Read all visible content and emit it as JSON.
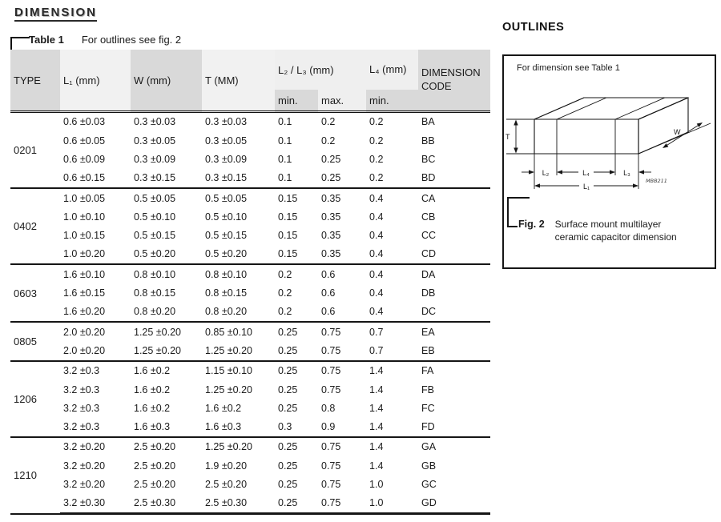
{
  "page": {
    "title": "DIMENSION"
  },
  "table": {
    "caption_label": "Table 1",
    "caption_note": "For outlines see fig. 2",
    "headers": {
      "type": "TYPE",
      "l1": "L₁ (mm)",
      "w": "W (mm)",
      "t": "T (MM)",
      "l2l3": "L₂ / L₃ (mm)",
      "l4": "L₄ (mm)",
      "code": "DIMENSION CODE",
      "min": "min.",
      "max": "max."
    },
    "groups": [
      {
        "type": "0201",
        "rows": [
          [
            "0.6 ±0.03",
            "0.3 ±0.03",
            "0.3 ±0.03",
            "0.1",
            "0.2",
            "0.2",
            "BA"
          ],
          [
            "0.6 ±0.05",
            "0.3 ±0.05",
            "0.3 ±0.05",
            "0.1",
            "0.2",
            "0.2",
            "BB"
          ],
          [
            "0.6 ±0.09",
            "0.3 ±0.09",
            "0.3 ±0.09",
            "0.1",
            "0.25",
            "0.2",
            "BC"
          ],
          [
            "0.6 ±0.15",
            "0.3 ±0.15",
            "0.3 ±0.15",
            "0.1",
            "0.25",
            "0.2",
            "BD"
          ]
        ]
      },
      {
        "type": "0402",
        "rows": [
          [
            "1.0 ±0.05",
            "0.5 ±0.05",
            "0.5 ±0.05",
            "0.15",
            "0.35",
            "0.4",
            "CA"
          ],
          [
            "1.0 ±0.10",
            "0.5 ±0.10",
            "0.5 ±0.10",
            "0.15",
            "0.35",
            "0.4",
            "CB"
          ],
          [
            "1.0 ±0.15",
            "0.5 ±0.15",
            "0.5 ±0.15",
            "0.15",
            "0.35",
            "0.4",
            "CC"
          ],
          [
            "1.0 ±0.20",
            "0.5 ±0.20",
            "0.5 ±0.20",
            "0.15",
            "0.35",
            "0.4",
            "CD"
          ]
        ]
      },
      {
        "type": "0603",
        "rows": [
          [
            "1.6 ±0.10",
            "0.8 ±0.10",
            "0.8 ±0.10",
            "0.2",
            "0.6",
            "0.4",
            "DA"
          ],
          [
            "1.6 ±0.15",
            "0.8 ±0.15",
            "0.8 ±0.15",
            "0.2",
            "0.6",
            "0.4",
            "DB"
          ],
          [
            "1.6 ±0.20",
            "0.8 ±0.20",
            "0.8 ±0.20",
            "0.2",
            "0.6",
            "0.4",
            "DC"
          ]
        ]
      },
      {
        "type": "0805",
        "rows": [
          [
            "2.0 ±0.20",
            "1.25 ±0.20",
            "0.85 ±0.10",
            "0.25",
            "0.75",
            "0.7",
            "EA"
          ],
          [
            "2.0 ±0.20",
            "1.25 ±0.20",
            "1.25 ±0.20",
            "0.25",
            "0.75",
            "0.7",
            "EB"
          ]
        ]
      },
      {
        "type": "1206",
        "rows": [
          [
            "3.2 ±0.3",
            "1.6 ±0.2",
            "1.15 ±0.10",
            "0.25",
            "0.75",
            "1.4",
            "FA"
          ],
          [
            "3.2 ±0.3",
            "1.6 ±0.2",
            "1.25 ±0.20",
            "0.25",
            "0.75",
            "1.4",
            "FB"
          ],
          [
            "3.2 ±0.3",
            "1.6 ±0.2",
            "1.6 ±0.2",
            "0.25",
            "0.8",
            "1.4",
            "FC"
          ],
          [
            "3.2 ±0.3",
            "1.6 ±0.3",
            "1.6 ±0.3",
            "0.3",
            "0.9",
            "1.4",
            "FD"
          ]
        ]
      },
      {
        "type": "1210",
        "rows": [
          [
            "3.2 ±0.20",
            "2.5 ±0.20",
            "1.25 ±0.20",
            "0.25",
            "0.75",
            "1.4",
            "GA"
          ],
          [
            "3.2 ±0.20",
            "2.5 ±0.20",
            "1.9 ±0.20",
            "0.25",
            "0.75",
            "1.4",
            "GB"
          ],
          [
            "3.2 ±0.20",
            "2.5 ±0.20",
            "2.5 ±0.20",
            "0.25",
            "0.75",
            "1.0",
            "GC"
          ],
          [
            "3.2 ±0.30",
            "2.5 ±0.30",
            "2.5 ±0.30",
            "0.25",
            "0.75",
            "1.0",
            "GD"
          ]
        ]
      }
    ]
  },
  "outlines": {
    "heading": "OUTLINES",
    "note": "For dimension see Table 1",
    "figure_labels": {
      "t": "T",
      "w": "W",
      "l1": "L₁",
      "l2": "L₂",
      "l3": "L₃",
      "l4": "L₄",
      "drawing_code": "MBB211"
    },
    "caption_label": "Fig. 2",
    "caption_text": "Surface mount multilayer ceramic capacitor dimension"
  },
  "colors": {
    "header_gray_dark": "#d9d9d9",
    "header_gray_light": "#f1f1f1",
    "header_gray_mid": "#efefef",
    "rule_black": "#151515"
  }
}
